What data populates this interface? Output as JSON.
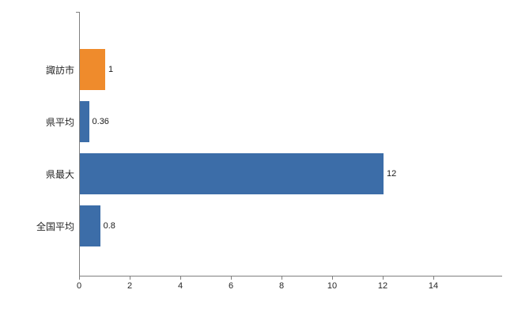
{
  "chart_data": {
    "type": "bar",
    "orientation": "horizontal",
    "title": "",
    "xlabel": "",
    "ylabel": "",
    "categories": [
      "諏訪市",
      "県平均",
      "県最大",
      "全国平均"
    ],
    "values": [
      1,
      0.36,
      12,
      0.8
    ],
    "value_labels": [
      "1",
      "0.36",
      "12",
      "0.8"
    ],
    "bar_colors": [
      "#EF8B2C",
      "#3C6DA8",
      "#3C6DA8",
      "#3C6DA8"
    ],
    "xlim": [
      0,
      14
    ],
    "x_ticks": [
      0,
      2,
      4,
      6,
      8,
      10,
      12,
      14
    ],
    "grid": false,
    "legend": false,
    "colors": {
      "accent_orange": "#EF8B2C",
      "accent_blue": "#3C6DA8",
      "axis_line": "#808080",
      "text": "#262626",
      "background": "#ffffff"
    }
  }
}
